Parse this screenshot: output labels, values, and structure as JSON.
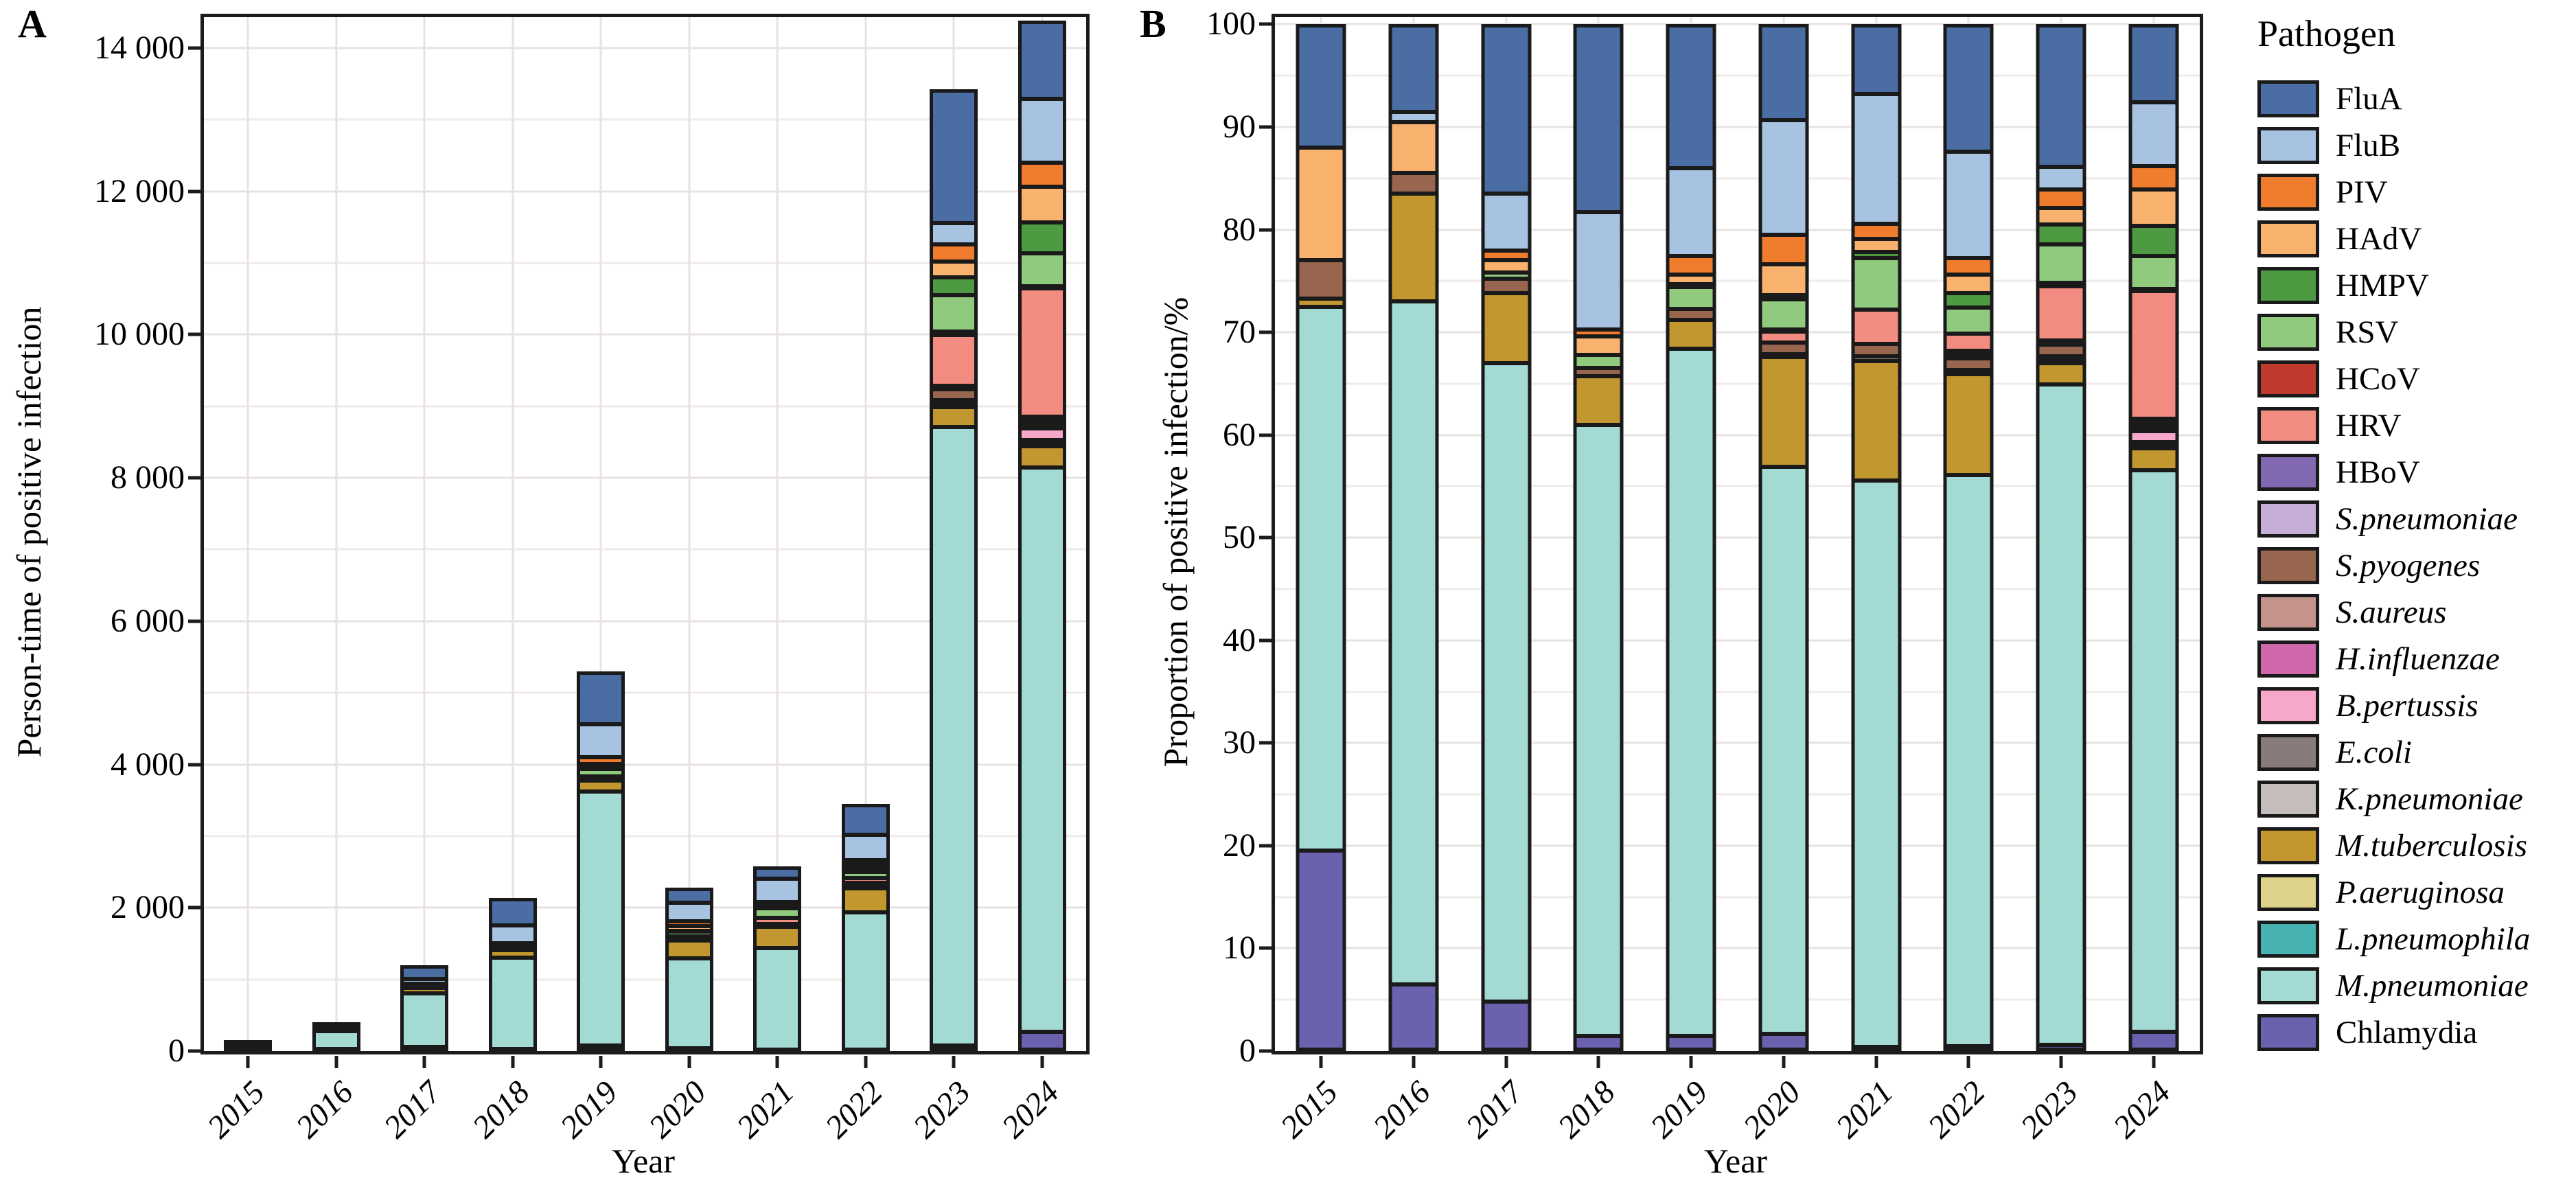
{
  "figure": {
    "panelA": {
      "label": "A",
      "y_title": "Person-time of positive infection",
      "x_title": "Year"
    },
    "panelB": {
      "label": "B",
      "y_title": "Proportion of positive infection/%",
      "x_title": "Year"
    },
    "years": [
      "2015",
      "2016",
      "2017",
      "2018",
      "2019",
      "2020",
      "2021",
      "2022",
      "2023",
      "2024"
    ]
  },
  "legend": {
    "title": "Pathogen",
    "items": [
      {
        "label": "FluA",
        "color": "#4a6da3",
        "italic": false
      },
      {
        "label": "FluB",
        "color": "#a8c3e2",
        "italic": false
      },
      {
        "label": "PIV",
        "color": "#ef7d2d",
        "italic": false
      },
      {
        "label": "HAdV",
        "color": "#f9b26e",
        "italic": false
      },
      {
        "label": "HMPV",
        "color": "#4d9a43",
        "italic": false
      },
      {
        "label": "RSV",
        "color": "#8fca7f",
        "italic": false
      },
      {
        "label": "HCoV",
        "color": "#c0392e",
        "italic": false
      },
      {
        "label": "HRV",
        "color": "#f28b80",
        "italic": false
      },
      {
        "label": "HBoV",
        "color": "#8168b0",
        "italic": false
      },
      {
        "label": "S.pneumoniae",
        "color": "#c6afd6",
        "italic": true
      },
      {
        "label": "S.pyogenes",
        "color": "#98664f",
        "italic": true
      },
      {
        "label": "S.aureus",
        "color": "#c4948c",
        "italic": true
      },
      {
        "label": "H.influenzae",
        "color": "#ce67ab",
        "italic": true
      },
      {
        "label": "B.pertussis",
        "color": "#f7a8ca",
        "italic": true
      },
      {
        "label": "E.coli",
        "color": "#877c7b",
        "italic": true
      },
      {
        "label": "K.pneumoniae",
        "color": "#c5bdbc",
        "italic": true
      },
      {
        "label": "M.tuberculosis",
        "color": "#c2972f",
        "italic": true
      },
      {
        "label": "P.aeruginosa",
        "color": "#ddd289",
        "italic": true
      },
      {
        "label": "L.pneumophila",
        "color": "#46b3b2",
        "italic": true
      },
      {
        "label": "M.pneumoniae",
        "color": "#a3dad4",
        "italic": true
      },
      {
        "label": "Chlamydia",
        "color": "#6a62ae",
        "italic": false
      }
    ]
  },
  "chart_data": [
    {
      "type": "bar",
      "stacked": true,
      "panel": "A",
      "title": "",
      "xlabel": "Year",
      "ylabel": "Person-time of positive infection",
      "categories": [
        "2015",
        "2016",
        "2017",
        "2018",
        "2019",
        "2020",
        "2021",
        "2022",
        "2023",
        "2024"
      ],
      "ylim": [
        0,
        14430
      ],
      "grid_minor": 1000,
      "grid_major": 2000,
      "legend_position": "right",
      "yticks": [
        {
          "value": 0,
          "label": "0"
        },
        {
          "value": 2000,
          "label": "2 000"
        },
        {
          "value": 4000,
          "label": "4 000"
        },
        {
          "value": 6000,
          "label": "6 000"
        },
        {
          "value": 8000,
          "label": "8 000"
        },
        {
          "value": 10000,
          "label": "10 000"
        },
        {
          "value": 12000,
          "label": "12 000"
        },
        {
          "value": 14000,
          "label": "14 000"
        }
      ],
      "totals": [
        110,
        381,
        1200,
        2141,
        5300,
        2280,
        2579,
        3449,
        13420,
        14380
      ],
      "series": [
        {
          "name": "FluA",
          "values": [
            13,
            32,
            198,
            392,
            742,
            212,
            175,
            428,
            1865,
            1093
          ]
        },
        {
          "name": "FluB",
          "values": [
            0,
            4,
            66,
            244,
            456,
            255,
            325,
            359,
            295,
            892
          ]
        },
        {
          "name": "PIV",
          "values": [
            0,
            0,
            12,
            15,
            95,
            66,
            39,
            55,
            242,
            331
          ]
        },
        {
          "name": "HAdV",
          "values": [
            12,
            19,
            14,
            39,
            48,
            68,
            34,
            62,
            215,
            503
          ]
        },
        {
          "name": "HMPV",
          "values": [
            0,
            0,
            0,
            0,
            16,
            9,
            15,
            48,
            255,
            431
          ]
        },
        {
          "name": "RSV",
          "values": [
            0,
            0,
            7,
            28,
            111,
            66,
            129,
            86,
            510,
            460
          ]
        },
        {
          "name": "HCoV",
          "values": [
            0,
            0,
            0,
            0,
            0,
            5,
            0,
            0,
            40,
            29
          ]
        },
        {
          "name": "HRV",
          "values": [
            0,
            0,
            0,
            0,
            0,
            25,
            85,
            59,
            711,
            1783
          ]
        },
        {
          "name": "HBoV",
          "values": [
            0,
            0,
            0,
            0,
            0,
            0,
            0,
            10,
            27,
            43
          ]
        },
        {
          "name": "S.pneumoniae",
          "values": [
            0,
            0,
            0,
            0,
            0,
            0,
            0,
            14,
            27,
            43
          ]
        },
        {
          "name": "S.pyogenes",
          "values": [
            4,
            8,
            17,
            17,
            58,
            25,
            31,
            41,
            148,
            43
          ]
        },
        {
          "name": "S.aureus",
          "values": [
            0,
            0,
            0,
            0,
            0,
            0,
            0,
            0,
            27,
            43
          ]
        },
        {
          "name": "H.influenzae",
          "values": [
            0,
            0,
            0,
            0,
            0,
            0,
            0,
            0,
            0,
            0
          ]
        },
        {
          "name": "B.pertussis",
          "values": [
            0,
            0,
            0,
            0,
            0,
            0,
            0,
            0,
            0,
            158
          ]
        },
        {
          "name": "E.coli",
          "values": [
            0,
            0,
            0,
            0,
            0,
            7,
            13,
            14,
            40,
            43
          ]
        },
        {
          "name": "K.pneumoniae",
          "values": [
            0,
            0,
            0,
            0,
            0,
            0,
            0,
            0,
            27,
            43
          ]
        },
        {
          "name": "M.tuberculosis",
          "values": [
            1,
            40,
            82,
            101,
            148,
            244,
            299,
            338,
            282,
            302
          ]
        },
        {
          "name": "P.aeruginosa",
          "values": [
            0,
            0,
            0,
            0,
            0,
            0,
            0,
            0,
            0,
            0
          ]
        },
        {
          "name": "L.pneumophila",
          "values": [
            0,
            0,
            0,
            0,
            0,
            0,
            0,
            0,
            0,
            0
          ]
        },
        {
          "name": "M.pneumoniae",
          "values": [
            58,
            253,
            746,
            1273,
            3546,
            1259,
            1424,
            1918,
            8629,
            7867
          ]
        },
        {
          "name": "Chlamydia",
          "values": [
            22,
            25,
            58,
            32,
            80,
            39,
            10,
            17,
            80,
            273
          ]
        }
      ]
    },
    {
      "type": "bar",
      "stacked": true,
      "panel": "B",
      "title": "",
      "xlabel": "Year",
      "ylabel": "Proportion of positive infection/%",
      "categories": [
        "2015",
        "2016",
        "2017",
        "2018",
        "2019",
        "2020",
        "2021",
        "2022",
        "2023",
        "2024"
      ],
      "ylim": [
        0,
        100.7
      ],
      "grid_minor": 5,
      "grid_major": 10,
      "legend_position": "right",
      "yticks": [
        {
          "value": 0,
          "label": "0"
        },
        {
          "value": 10,
          "label": "10"
        },
        {
          "value": 20,
          "label": "20"
        },
        {
          "value": 30,
          "label": "30"
        },
        {
          "value": 40,
          "label": "40"
        },
        {
          "value": 50,
          "label": "50"
        },
        {
          "value": 60,
          "label": "60"
        },
        {
          "value": 70,
          "label": "70"
        },
        {
          "value": 80,
          "label": "80"
        },
        {
          "value": 90,
          "label": "90"
        },
        {
          "value": 100,
          "label": "100"
        }
      ],
      "series": [
        {
          "name": "FluA",
          "values": [
            12.0,
            8.5,
            16.5,
            18.3,
            14.0,
            9.3,
            6.8,
            12.4,
            13.9,
            7.6
          ]
        },
        {
          "name": "FluB",
          "values": [
            0,
            1.0,
            5.5,
            11.4,
            8.6,
            11.2,
            12.6,
            10.4,
            2.2,
            6.2
          ]
        },
        {
          "name": "PIV",
          "values": [
            0,
            0,
            1.0,
            0.7,
            1.8,
            2.9,
            1.5,
            1.6,
            1.8,
            2.3
          ]
        },
        {
          "name": "HAdV",
          "values": [
            11.0,
            5.0,
            1.2,
            1.8,
            0.9,
            3.0,
            1.3,
            1.8,
            1.6,
            3.5
          ]
        },
        {
          "name": "HMPV",
          "values": [
            0,
            0,
            0,
            0,
            0.3,
            0.4,
            0.6,
            1.4,
            1.9,
            3.0
          ]
        },
        {
          "name": "RSV",
          "values": [
            0,
            0,
            0.6,
            1.3,
            2.1,
            2.9,
            5.0,
            2.5,
            3.8,
            3.2
          ]
        },
        {
          "name": "HCoV",
          "values": [
            0,
            0,
            0,
            0,
            0,
            0.2,
            0,
            0,
            0.3,
            0.2
          ]
        },
        {
          "name": "HRV",
          "values": [
            0,
            0,
            0,
            0,
            0,
            1.1,
            3.3,
            1.7,
            5.3,
            12.4
          ]
        },
        {
          "name": "HBoV",
          "values": [
            0,
            0,
            0,
            0,
            0,
            0,
            0,
            0.3,
            0.2,
            0.3
          ]
        },
        {
          "name": "S.pneumoniae",
          "values": [
            0,
            0,
            0,
            0,
            0,
            0,
            0,
            0.4,
            0.2,
            0.3
          ]
        },
        {
          "name": "S.pyogenes",
          "values": [
            3.7,
            2.0,
            1.4,
            0.8,
            1.1,
            1.1,
            1.2,
            1.2,
            1.1,
            0.3
          ]
        },
        {
          "name": "S.aureus",
          "values": [
            0,
            0,
            0,
            0,
            0,
            0,
            0,
            0,
            0.2,
            0.3
          ]
        },
        {
          "name": "H.influenzae",
          "values": [
            0,
            0,
            0,
            0,
            0,
            0,
            0,
            0,
            0,
            0
          ]
        },
        {
          "name": "B.pertussis",
          "values": [
            0,
            0,
            0,
            0,
            0,
            0,
            0,
            0,
            0,
            1.1
          ]
        },
        {
          "name": "E.coli",
          "values": [
            0,
            0,
            0,
            0,
            0,
            0.3,
            0.5,
            0.4,
            0.3,
            0.3
          ]
        },
        {
          "name": "K.pneumoniae",
          "values": [
            0,
            0,
            0,
            0,
            0,
            0,
            0,
            0,
            0.2,
            0.3
          ]
        },
        {
          "name": "M.tuberculosis",
          "values": [
            0.8,
            10.5,
            6.8,
            4.7,
            2.8,
            10.7,
            11.6,
            9.8,
            2.1,
            2.1
          ]
        },
        {
          "name": "P.aeruginosa",
          "values": [
            0,
            0,
            0,
            0,
            0,
            0,
            0,
            0,
            0,
            0
          ]
        },
        {
          "name": "L.pneumophila",
          "values": [
            0,
            0,
            0,
            0,
            0,
            0,
            0,
            0,
            0,
            0
          ]
        },
        {
          "name": "M.pneumoniae",
          "values": [
            53.0,
            66.5,
            62.2,
            59.5,
            66.9,
            55.2,
            55.2,
            55.6,
            64.3,
            54.7
          ]
        },
        {
          "name": "Chlamydia",
          "values": [
            19.5,
            6.5,
            4.8,
            1.5,
            1.5,
            1.7,
            0.4,
            0.5,
            0.6,
            1.9
          ]
        }
      ]
    }
  ]
}
